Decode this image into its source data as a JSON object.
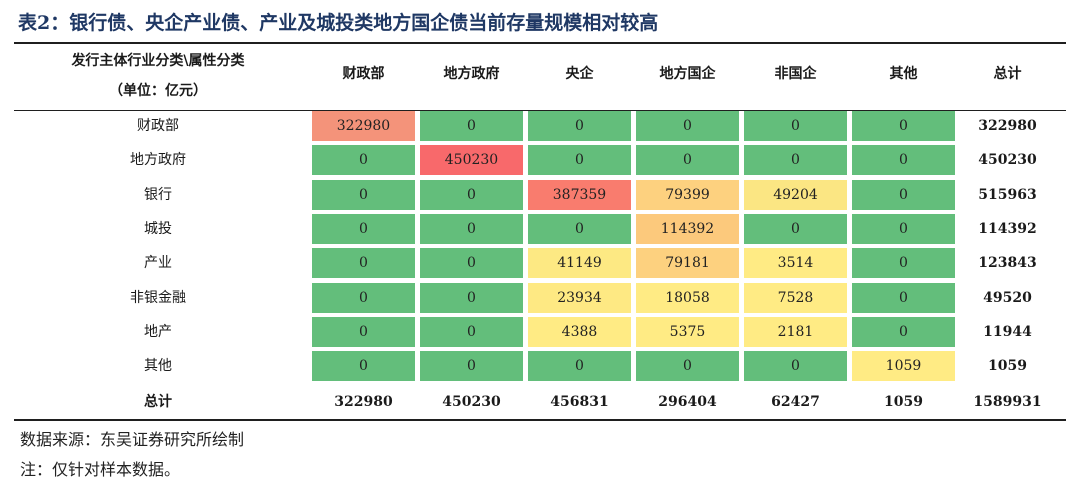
{
  "title": "表2：银行债、央企产业债、产业及城投类地方国企债当前存量规模相对较高",
  "header": {
    "corner_line1": "发行主体行业分类\\属性分类",
    "corner_line2": "（单位：亿元）",
    "columns": [
      "财政部",
      "地方政府",
      "央企",
      "地方国企",
      "非国企",
      "其他",
      "总计"
    ]
  },
  "rows": [
    {
      "label": "财政部",
      "values": [
        "322980",
        "0",
        "0",
        "0",
        "0",
        "0"
      ],
      "colors": [
        "#f4937a",
        "#63be7b",
        "#63be7b",
        "#63be7b",
        "#63be7b",
        "#63be7b"
      ],
      "total": "322980"
    },
    {
      "label": "地方政府",
      "values": [
        "0",
        "450230",
        "0",
        "0",
        "0",
        "0"
      ],
      "colors": [
        "#63be7b",
        "#f8696b",
        "#63be7b",
        "#63be7b",
        "#63be7b",
        "#63be7b"
      ],
      "total": "450230"
    },
    {
      "label": "银行",
      "values": [
        "0",
        "0",
        "387359",
        "79399",
        "49204",
        "0"
      ],
      "colors": [
        "#63be7b",
        "#63be7b",
        "#f97c6e",
        "#fdd17f",
        "#fbe683",
        "#63be7b"
      ],
      "total": "515963"
    },
    {
      "label": "城投",
      "values": [
        "0",
        "0",
        "0",
        "114392",
        "0",
        "0"
      ],
      "colors": [
        "#63be7b",
        "#63be7b",
        "#63be7b",
        "#fcc97c",
        "#63be7b",
        "#63be7b"
      ],
      "total": "114392"
    },
    {
      "label": "产业",
      "values": [
        "0",
        "0",
        "41149",
        "79181",
        "3514",
        "0"
      ],
      "colors": [
        "#63be7b",
        "#63be7b",
        "#fde983",
        "#fdd17f",
        "#ffeb84",
        "#63be7b"
      ],
      "total": "123843"
    },
    {
      "label": "非银金融",
      "values": [
        "0",
        "0",
        "23934",
        "18058",
        "7528",
        "0"
      ],
      "colors": [
        "#63be7b",
        "#63be7b",
        "#fee983",
        "#ffeb84",
        "#ffeb84",
        "#63be7b"
      ],
      "total": "49520"
    },
    {
      "label": "地产",
      "values": [
        "0",
        "0",
        "4388",
        "5375",
        "2181",
        "0"
      ],
      "colors": [
        "#63be7b",
        "#63be7b",
        "#ffeb84",
        "#ffeb84",
        "#ffeb84",
        "#63be7b"
      ],
      "total": "11944"
    },
    {
      "label": "其他",
      "values": [
        "0",
        "0",
        "0",
        "0",
        "0",
        "1059"
      ],
      "colors": [
        "#63be7b",
        "#63be7b",
        "#63be7b",
        "#63be7b",
        "#63be7b",
        "#ffeb84"
      ],
      "total": "1059"
    }
  ],
  "summary": {
    "label": "总计",
    "values": [
      "322980",
      "450230",
      "456831",
      "296404",
      "62427",
      "1059",
      "1589931"
    ]
  },
  "footer": {
    "source": "数据来源：东吴证券研究所绘制",
    "note": "注：仅针对样本数据。"
  }
}
